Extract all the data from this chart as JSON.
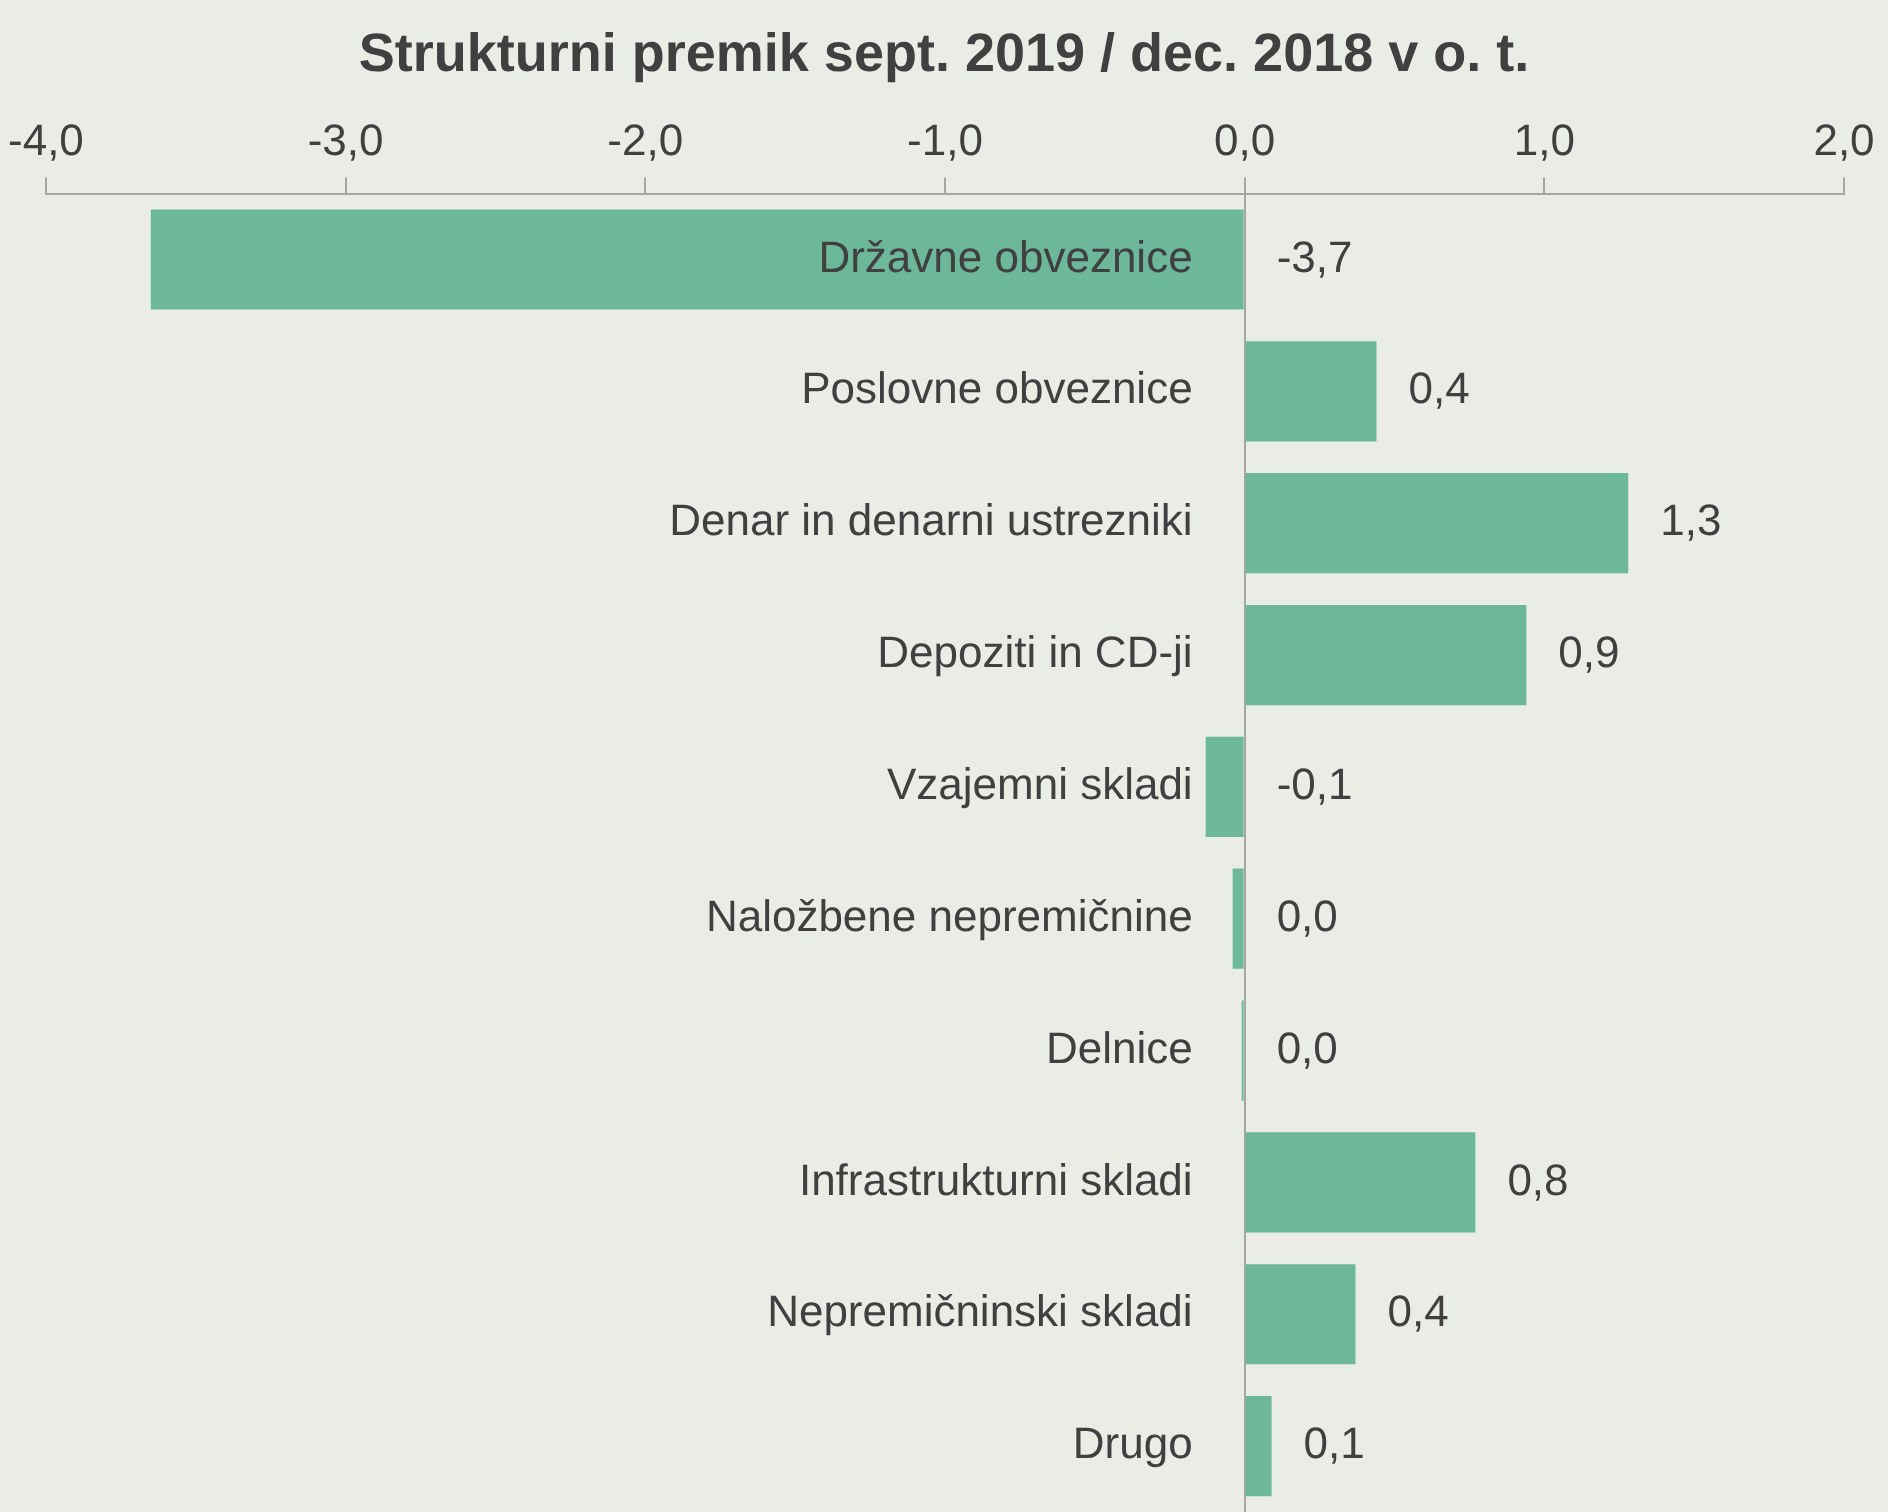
{
  "chart_data": {
    "type": "bar",
    "orientation": "horizontal",
    "title": "Strukturni premik sept. 2019 / dec. 2018 v o. t.",
    "categories": [
      "Državne obveznice",
      "Poslovne obveznice",
      "Denar in denarni ustrezniki",
      "Depoziti in CD-ji",
      "Vzajemni skladi",
      "Naložbene nepremičnine",
      "Delnice",
      "Infrastrukturni skladi",
      "Nepremičninski skladi",
      "Drugo"
    ],
    "values": [
      -3.65,
      0.44,
      1.28,
      0.94,
      -0.13,
      -0.04,
      -0.01,
      0.77,
      0.37,
      0.09
    ],
    "value_labels": [
      "-3,7",
      "0,4",
      "1,3",
      "0,9",
      "-0,1",
      "0,0",
      "0,0",
      "0,8",
      "0,4",
      "0,1"
    ],
    "color": "#6db89a",
    "xlim": [
      -4,
      2
    ],
    "xticks": [
      {
        "value": -4,
        "label": "-4,0"
      },
      {
        "value": -3,
        "label": "-3,0"
      },
      {
        "value": -2,
        "label": "-2,0"
      },
      {
        "value": -1,
        "label": "-1,0"
      },
      {
        "value": 0,
        "label": "0,0"
      },
      {
        "value": 1,
        "label": "1,0"
      },
      {
        "value": 2,
        "label": "2,0"
      }
    ],
    "grid": false,
    "legend": false
  }
}
